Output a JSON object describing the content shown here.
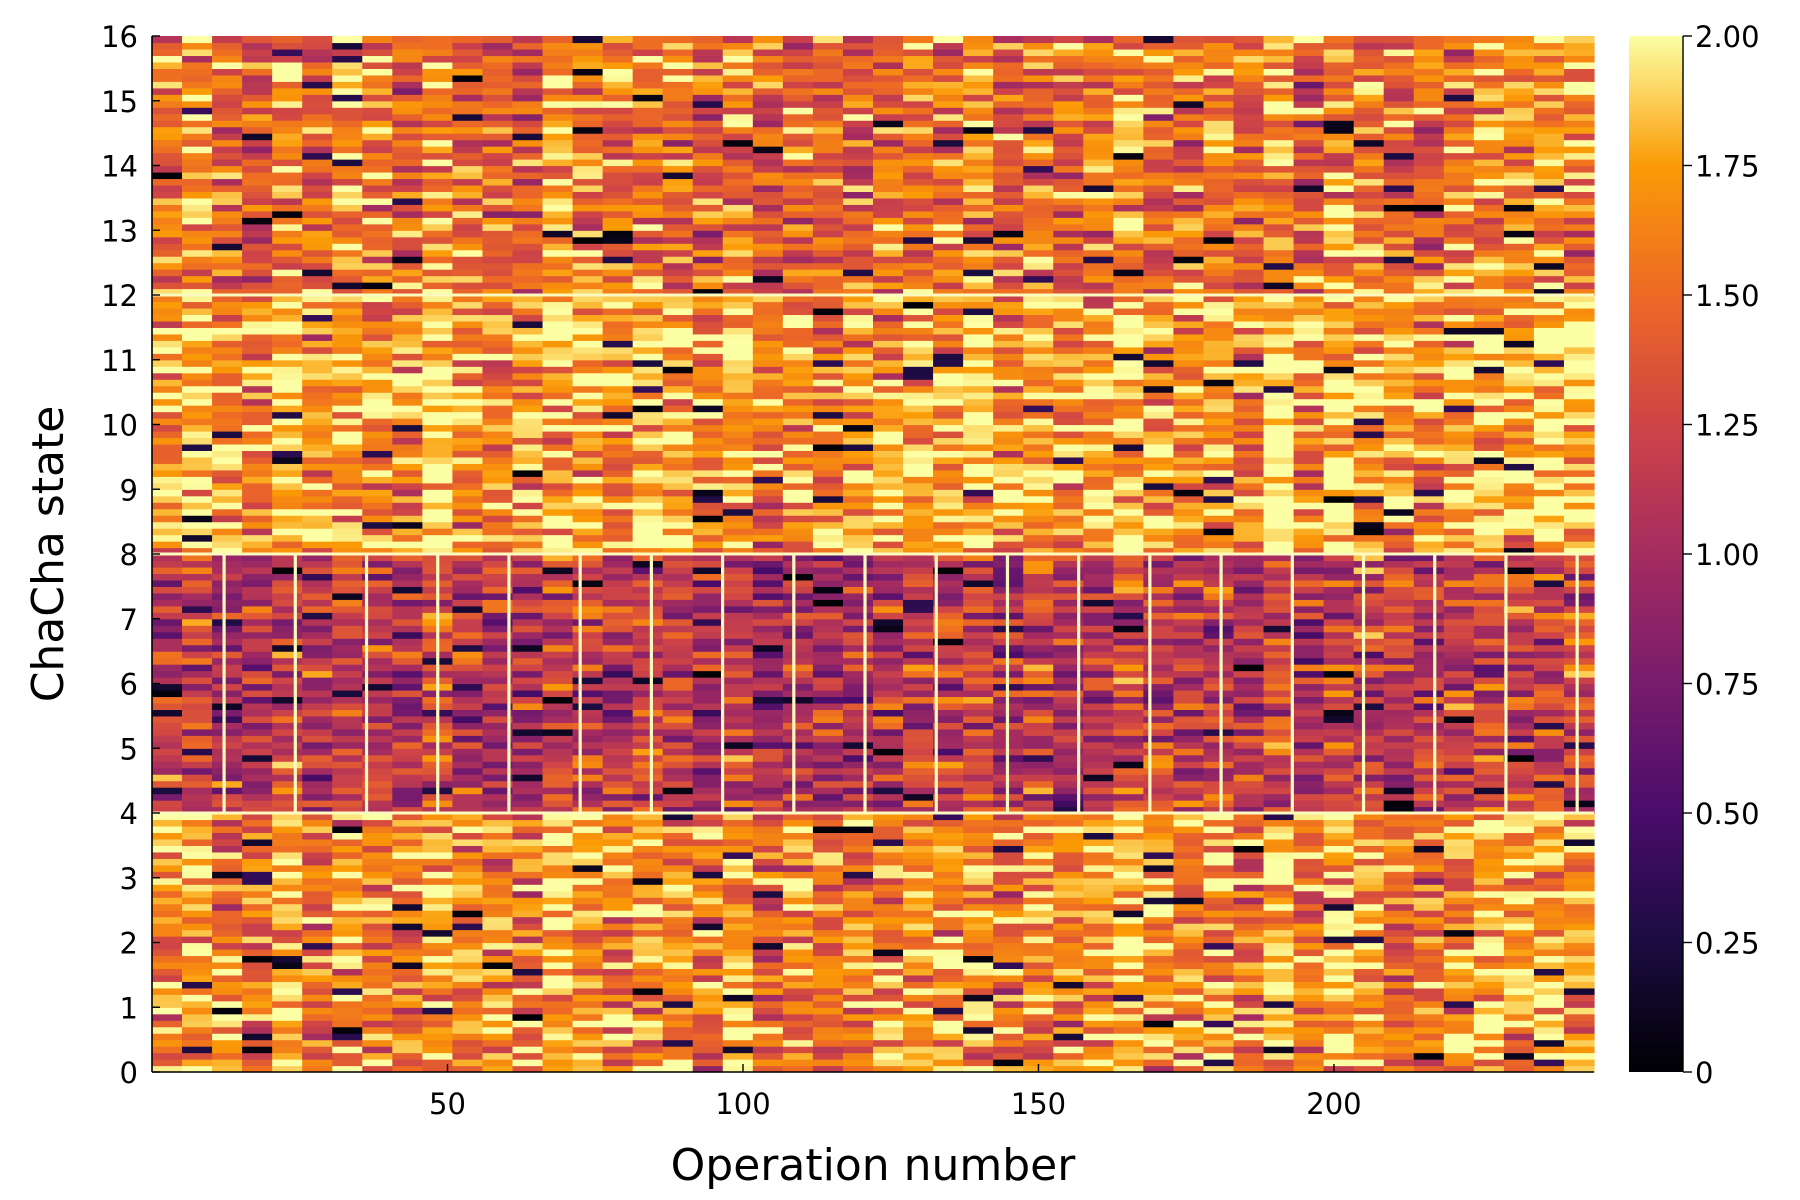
{
  "chart_data": {
    "type": "heatmap",
    "title": "",
    "xlabel": "Operation number",
    "ylabel": "ChaCha state",
    "x_range": [
      0,
      244
    ],
    "y_range": [
      0,
      16
    ],
    "x_ticks": [
      50,
      100,
      150,
      200
    ],
    "y_ticks": [
      0,
      1,
      2,
      3,
      4,
      5,
      6,
      7,
      8,
      9,
      10,
      11,
      12,
      13,
      14,
      15,
      16
    ],
    "colorbar": {
      "range": [
        0,
        2
      ],
      "ticks": [
        0,
        0.25,
        0.5,
        0.75,
        1.0,
        1.25,
        1.5,
        1.75,
        2.0
      ],
      "tick_labels": [
        "0",
        "0.25",
        "0.50",
        "0.75",
        "1.00",
        "1.25",
        "1.50",
        "1.75",
        "2.00"
      ],
      "colormap": "inferno"
    },
    "bands": [
      {
        "rows": "0-4",
        "typical_value": 1.65
      },
      {
        "rows": "4-8",
        "typical_value": 1.15
      },
      {
        "rows": "8-12",
        "typical_value": 1.75
      },
      {
        "rows": "12-16",
        "typical_value": 1.55
      }
    ],
    "grid": false,
    "legend": "colorbar-right"
  }
}
